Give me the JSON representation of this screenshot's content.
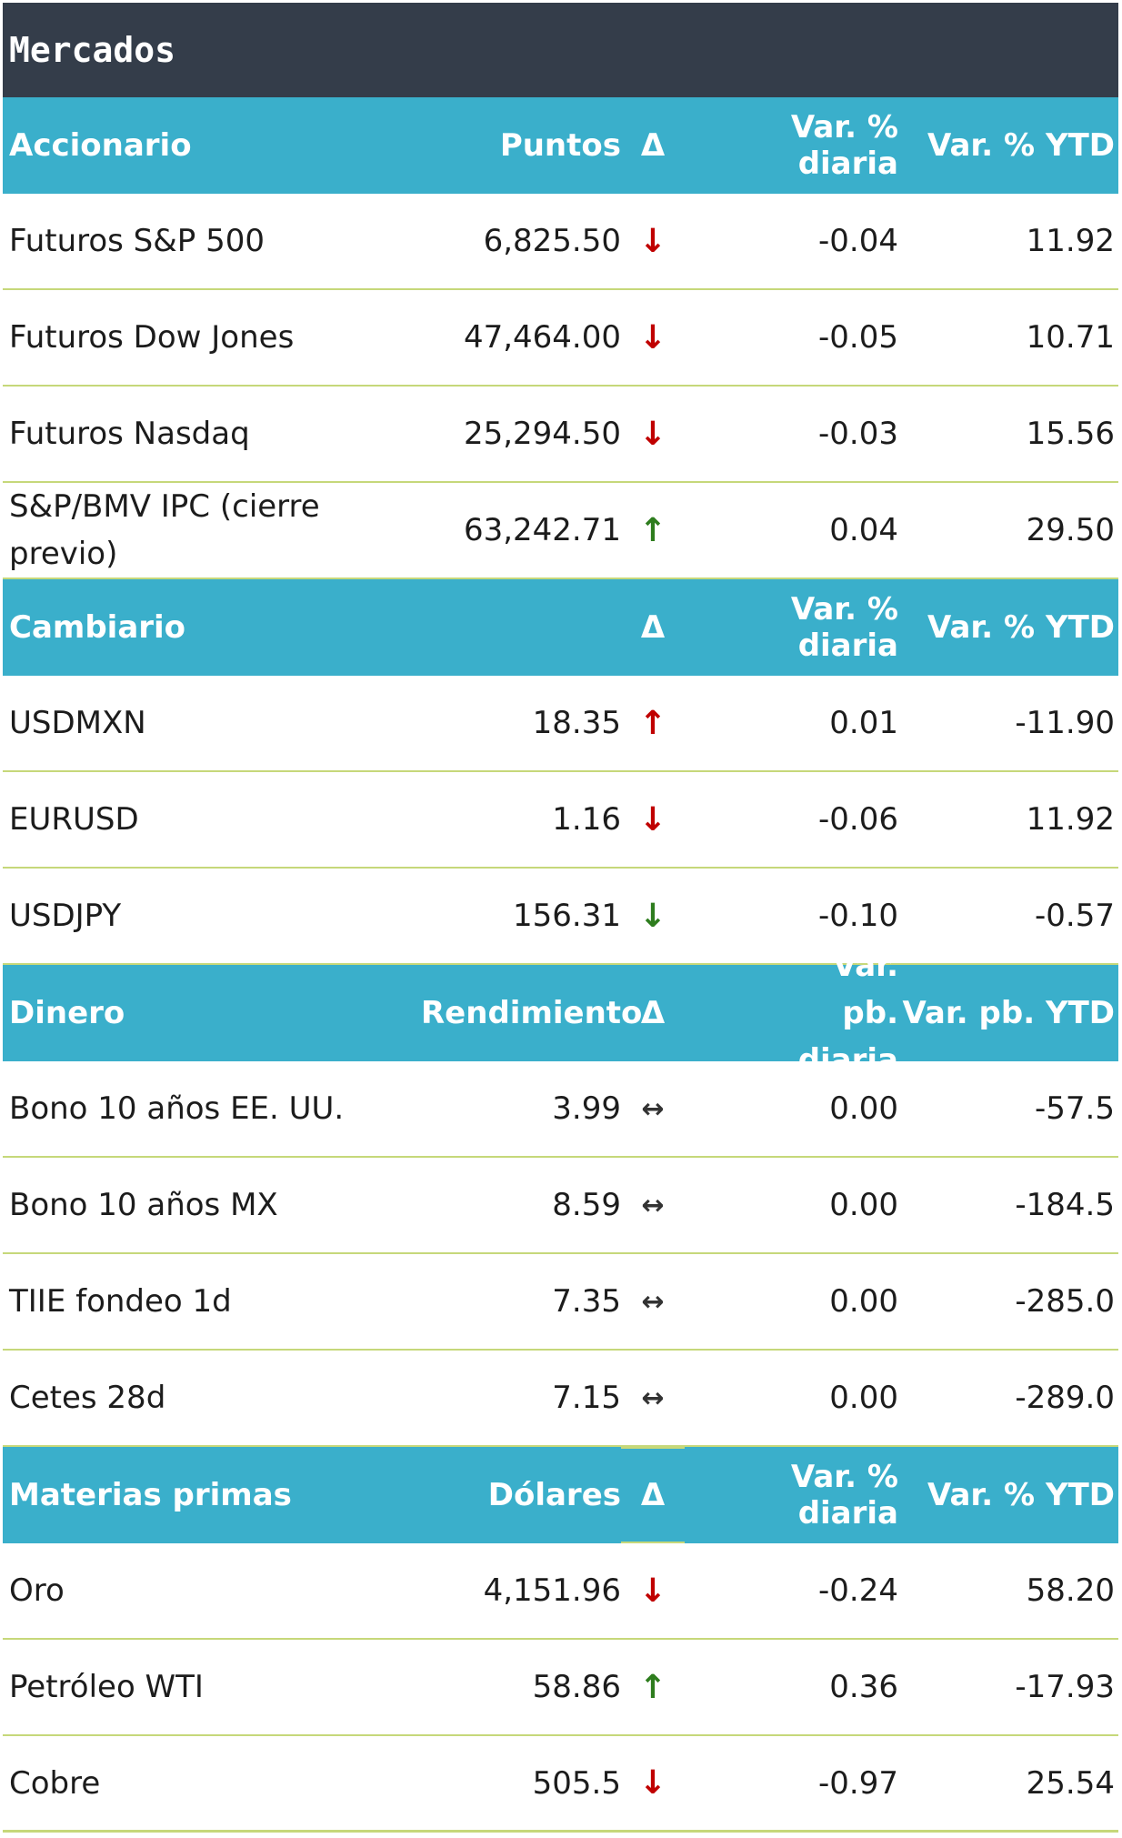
{
  "title": "Mercados",
  "colors": {
    "header_dark": "#343d4a",
    "header_teal": "#3aafcb",
    "divider": "#c6d87a",
    "down": "#c00000",
    "up": "#2e7d1e"
  },
  "sections": [
    {
      "id": "accionario",
      "header": {
        "name": "Accionario",
        "value": "Puntos",
        "delta": "Δ",
        "daily": "Var. % diaria",
        "ytd": "Var. % YTD"
      },
      "rows": [
        {
          "name": "Futuros S&P 500",
          "value": "6,825.50",
          "arrow": "↓",
          "daily": "-0.04",
          "ytd": "11.92"
        },
        {
          "name": "Futuros Dow Jones",
          "value": "47,464.00",
          "arrow": "↓",
          "daily": "-0.05",
          "ytd": "10.71"
        },
        {
          "name": "Futuros Nasdaq",
          "value": "25,294.50",
          "arrow": "↓",
          "daily": "-0.03",
          "ytd": "15.56"
        },
        {
          "name": "S&P/BMV IPC (cierre previo)",
          "value": "63,242.71",
          "arrow": "↑",
          "daily": "0.04",
          "ytd": "29.50"
        }
      ]
    },
    {
      "id": "cambiario",
      "header": {
        "name": "Cambiario",
        "value": "",
        "delta": "Δ",
        "daily": "Var. % diaria",
        "ytd": "Var. % YTD"
      },
      "rows": [
        {
          "name": "USDMXN",
          "value": "18.35",
          "arrow": "↑",
          "daily": "0.01",
          "ytd": "-11.90"
        },
        {
          "name": "EURUSD",
          "value": "1.16",
          "arrow": "↓",
          "daily": "-0.06",
          "ytd": "11.92"
        },
        {
          "name": "USDJPY",
          "value": "156.31",
          "arrow": "↓",
          "daily": "-0.10",
          "ytd": "-0.57"
        }
      ]
    },
    {
      "id": "dinero",
      "header": {
        "name": "Dinero",
        "value": "Rendimiento",
        "delta": "Δ",
        "daily": "Var. pb. diaria",
        "ytd": "Var. pb. YTD"
      },
      "rows": [
        {
          "name": "Bono 10 años EE. UU.",
          "value": "3.99",
          "arrow": "↔",
          "daily": "0.00",
          "ytd": "-57.5"
        },
        {
          "name": "Bono 10 años MX",
          "value": "8.59",
          "arrow": "↔",
          "daily": "0.00",
          "ytd": "-184.5"
        },
        {
          "name": "TIIE fondeo 1d",
          "value": "7.35",
          "arrow": "↔",
          "daily": "0.00",
          "ytd": "-285.0"
        },
        {
          "name": "Cetes 28d",
          "value": "7.15",
          "arrow": "↔",
          "daily": "0.00",
          "ytd": "-289.0"
        }
      ]
    },
    {
      "id": "materias",
      "header": {
        "name": "Materias primas",
        "value": "Dólares",
        "delta": "Δ",
        "daily": "Var. % diaria",
        "ytd": "Var. % YTD"
      },
      "rows": [
        {
          "name": "Oro",
          "value": "4,151.96",
          "arrow": "↓",
          "daily": "-0.24",
          "ytd": "58.20"
        },
        {
          "name": "Petróleo WTI",
          "value": "58.86",
          "arrow": "↑",
          "daily": "0.36",
          "ytd": "-17.93"
        },
        {
          "name": "Cobre",
          "value": "505.5",
          "arrow": "↓",
          "daily": "-0.97",
          "ytd": "25.54"
        }
      ]
    }
  ]
}
